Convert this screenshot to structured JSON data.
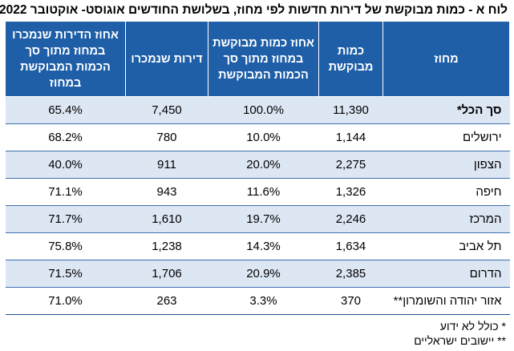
{
  "title": "לוח א - כמות מבוקשת של דירות חדשות לפי מחוז, בשלושת החודשים אוגוסט- אוקטובר 2022",
  "columns": {
    "district": "מחוז",
    "quantity": "כמות מבוקשת",
    "share_requested": "אחוז כמות מבוקשת במחוז מתוך סך הכמות המבוקשת",
    "sold": "דירות שנמכרו",
    "share_sold": "אחוז הדירות שנמכרו במחוז מתוך סך הכמות המבוקשת במחוז"
  },
  "rows": [
    {
      "district": "סך הכל*",
      "quantity": "11,390",
      "share_requested": "100.0%",
      "sold": "7,450",
      "share_sold": "65.4%"
    },
    {
      "district": "ירושלים",
      "quantity": "1,144",
      "share_requested": "10.0%",
      "sold": "780",
      "share_sold": "68.2%"
    },
    {
      "district": "הצפון",
      "quantity": "2,275",
      "share_requested": "20.0%",
      "sold": "911",
      "share_sold": "40.0%"
    },
    {
      "district": "חיפה",
      "quantity": "1,326",
      "share_requested": "11.6%",
      "sold": "943",
      "share_sold": "71.1%"
    },
    {
      "district": "המרכז",
      "quantity": "2,246",
      "share_requested": "19.7%",
      "sold": "1,610",
      "share_sold": "71.7%"
    },
    {
      "district": "תל אביב",
      "quantity": "1,634",
      "share_requested": "14.3%",
      "sold": "1,238",
      "share_sold": "75.8%"
    },
    {
      "district": "הדרום",
      "quantity": "2,385",
      "share_requested": "20.9%",
      "sold": "1,706",
      "share_sold": "71.5%"
    },
    {
      "district": "אזור יהודה והשומרון**",
      "quantity": "370",
      "share_requested": "3.3%",
      "sold": "263",
      "share_sold": "71.0%"
    }
  ],
  "footnotes": [
    "* כולל לא ידוע",
    "** יישובים ישראליים"
  ],
  "colors": {
    "header_bg": "#1f5fa8",
    "row_band": "#dde7f4",
    "row_line": "#3f6fb0"
  }
}
